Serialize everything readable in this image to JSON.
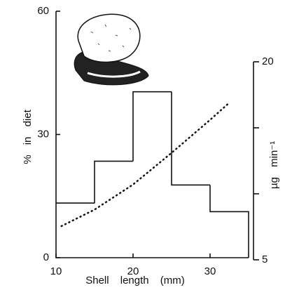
{
  "chart_data": [
    {
      "type": "histogram",
      "x_label": "Shell length (mm)",
      "y_label": "% in diet",
      "bins": [
        10,
        15,
        20,
        25,
        30,
        35
      ],
      "values": [
        13.3,
        23.5,
        40.4,
        17.7,
        11.2
      ],
      "color": "#111111",
      "xlim": [
        10,
        35
      ],
      "xticks": [
        10,
        20,
        30
      ],
      "ylim": [
        0,
        60
      ],
      "yticks": [
        0,
        30,
        60
      ]
    },
    {
      "type": "line",
      "y2_label": "µg min⁻¹",
      "x": [
        10.7,
        15,
        20,
        25,
        30,
        32.5
      ],
      "values": [
        7.55,
        8.8,
        10.7,
        13.1,
        15.6,
        16.9
      ],
      "axis": "y2",
      "color": "#111111",
      "y2lim": [
        5,
        20
      ],
      "y2ticks": [
        5,
        {
          "value": 10,
          "label": null
        },
        {
          "value": 15,
          "label": null
        },
        20
      ]
    }
  ]
}
